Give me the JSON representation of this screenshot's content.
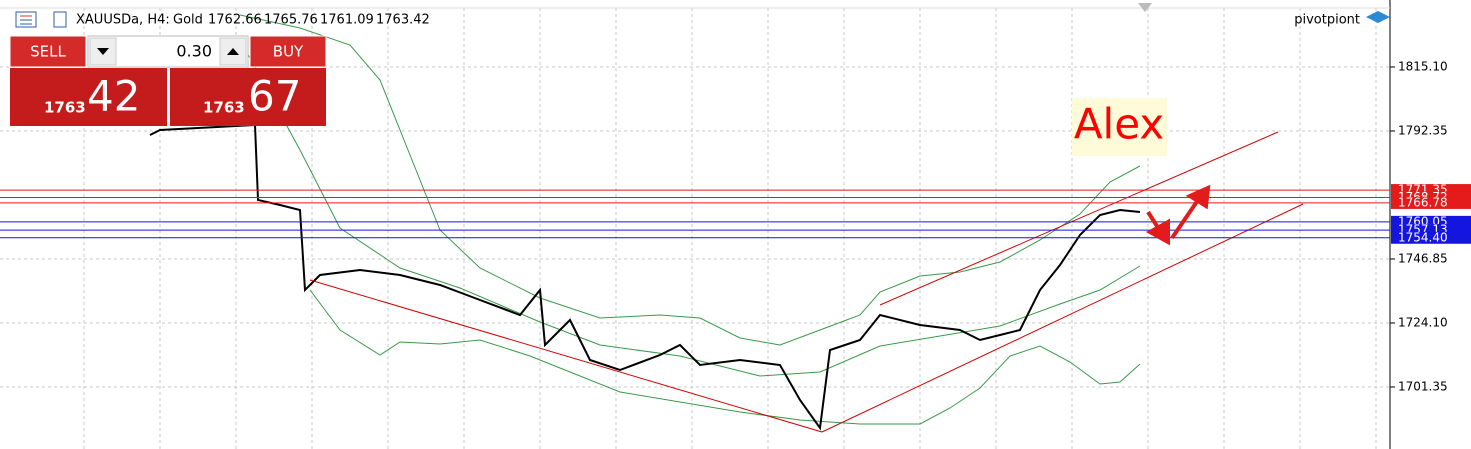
{
  "header": {
    "symbol": "XAUUSDa, H4:",
    "description": "Gold",
    "ohlc": [
      "1762.66",
      "1765.76",
      "1761.09",
      "1763.42"
    ]
  },
  "brand": "pivotpiont",
  "trade_panel": {
    "sell": "SELL",
    "buy": "BUY",
    "volume": "0.30",
    "bid_prefix": "1763",
    "bid_pips": "42",
    "ask_prefix": "1763",
    "ask_pips": "67"
  },
  "price_axis": [
    "1815.10",
    "1792.35",
    "1746.85",
    "1724.10",
    "1701.35"
  ],
  "levels": [
    {
      "label": "1771.35",
      "color": "#e31b1b"
    },
    {
      "label": "1768.72",
      "color": "#e31b1b"
    },
    {
      "label": "1766.78",
      "color": "#e31b1b"
    },
    {
      "label": "1760.05",
      "color": "#1515e0"
    },
    {
      "label": "1757.13",
      "color": "#1515e0"
    },
    {
      "label": "1754.40",
      "color": "#1515e0"
    }
  ],
  "annotation": "Alex"
}
